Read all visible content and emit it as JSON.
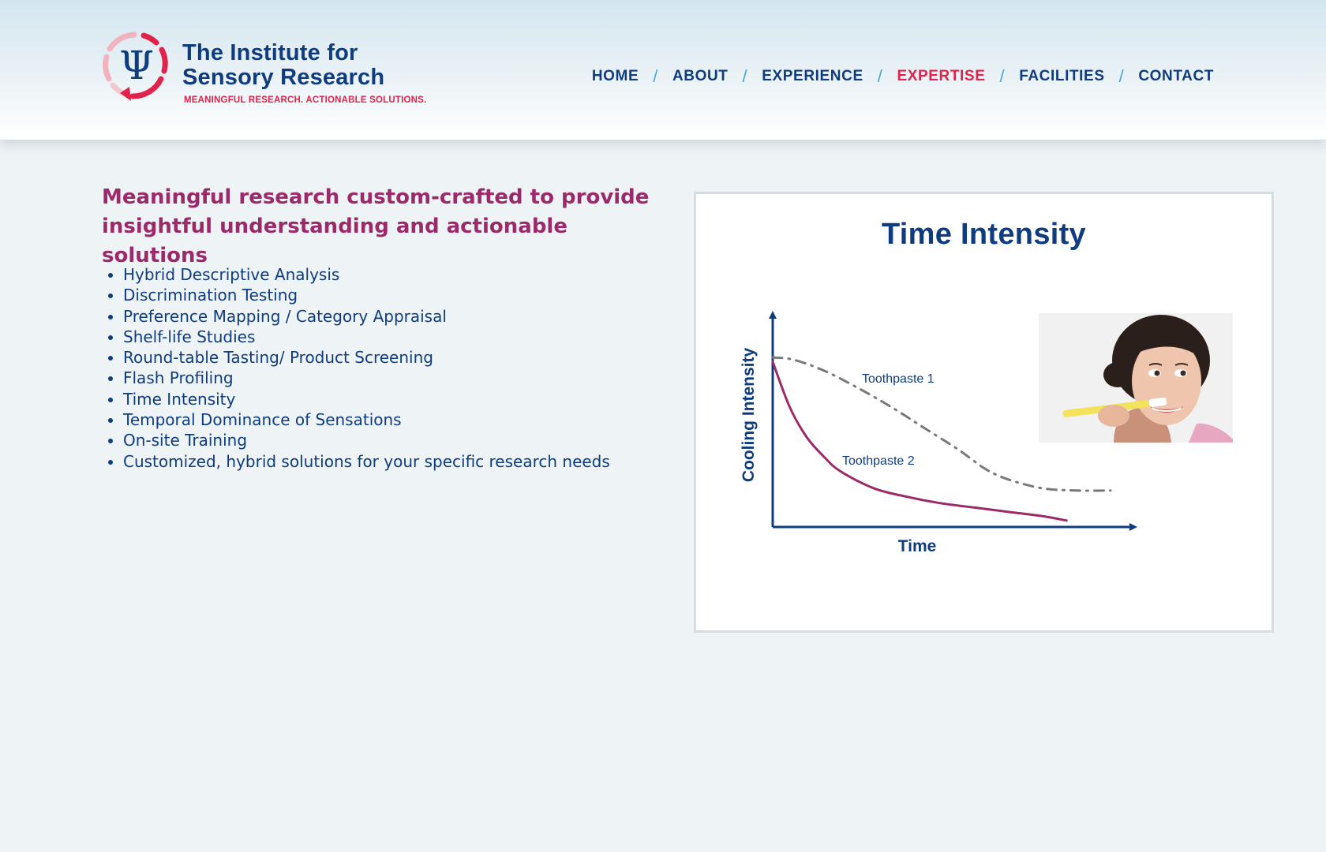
{
  "site": {
    "logo": {
      "title_line1": "The Institute for",
      "title_line2": "Sensory Research",
      "tagline": "MEANINGFUL RESEARCH. ACTIONABLE SOLUTIONS.",
      "symbol": "Ψ",
      "colors": {
        "navy": "#0f3c7e",
        "red": "#e0234c",
        "pink": "#f2b2bf"
      }
    },
    "nav": {
      "items": [
        {
          "label": "HOME",
          "active": false
        },
        {
          "label": "ABOUT",
          "active": false
        },
        {
          "label": "EXPERIENCE",
          "active": false
        },
        {
          "label": "EXPERTISE",
          "active": true
        },
        {
          "label": "FACILITIES",
          "active": false
        },
        {
          "label": "CONTACT",
          "active": false
        }
      ],
      "separator": "/",
      "colors": {
        "link": "#0f3c7e",
        "active": "#e0234c",
        "separator": "#45a9d8"
      }
    }
  },
  "main": {
    "intro": "Meaningful research custom-crafted to provide insightful understanding and actionable solutions",
    "services": [
      "Hybrid Descriptive Analysis",
      "Discrimination Testing",
      "Preference Mapping / Category Appraisal",
      "Shelf-life Studies",
      "Round-table Tasting/ Product Screening",
      "Flash Profiling",
      "Time Intensity",
      "Temporal Dominance of Sensations",
      "On-site Training",
      "Customized, hybrid solutions for your specific research needs"
    ],
    "colors": {
      "intro": "#9b2a6a",
      "list": "#0f3c7e"
    }
  },
  "chart_data": {
    "type": "line",
    "title": "Time Intensity",
    "xlabel": "Time",
    "ylabel": "Cooling Intensity",
    "xlim": [
      0,
      10
    ],
    "ylim": [
      0,
      10
    ],
    "grid": false,
    "legend": "inline-labels",
    "series": [
      {
        "name": "Toothpaste 1",
        "style": "dash-dot",
        "color": "#7a7a7a",
        "x": [
          0,
          0.6,
          1.5,
          2.5,
          3.5,
          4.5,
          5.5,
          6.3,
          7.0,
          8.0,
          9.0,
          10.0
        ],
        "y": [
          7.9,
          7.8,
          7.3,
          6.5,
          5.6,
          4.6,
          3.6,
          2.7,
          2.2,
          1.8,
          1.7,
          1.7
        ]
      },
      {
        "name": "Toothpaste 2",
        "style": "solid",
        "color": "#9b2a6a",
        "x": [
          0,
          0.5,
          1.0,
          1.5,
          2.0,
          3.0,
          4.0,
          5.0,
          6.0,
          7.0,
          8.0,
          8.7
        ],
        "y": [
          7.7,
          5.6,
          4.2,
          3.3,
          2.6,
          1.8,
          1.4,
          1.1,
          0.9,
          0.7,
          0.5,
          0.3
        ]
      }
    ],
    "image_icon": "person-brushing-teeth-photo"
  }
}
